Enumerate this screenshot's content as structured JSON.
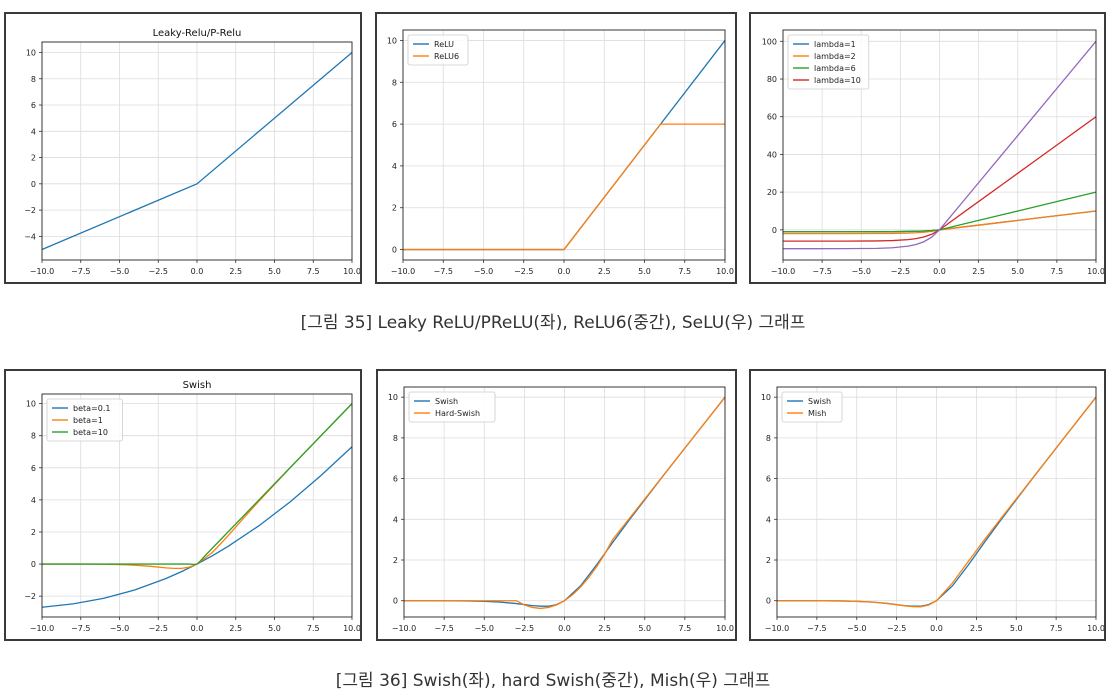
{
  "captions": {
    "row1": "[그림 35] Leaky ReLU/PReLU(좌), ReLU6(중간), SeLU(우) 그래프",
    "row2": "[그림 36] Swish(좌), hard Swish(중간), Mish(우) 그래프"
  },
  "chart_data": [
    {
      "type": "line",
      "title": "Leaky-Relu/P-Relu",
      "xlabel": "",
      "ylabel": "",
      "xlim": [
        -10.0,
        10.0
      ],
      "ylim": [
        -5.8,
        10.8
      ],
      "xticks": [
        "−10.0",
        "−7.5",
        "−5.0",
        "−2.5",
        "0.0",
        "2.5",
        "5.0",
        "7.5",
        "10.0"
      ],
      "xtick_values": [
        -10,
        -7.5,
        -5,
        -2.5,
        0,
        2.5,
        5,
        7.5,
        10
      ],
      "yticks": [
        "−4",
        "−2",
        "0",
        "2",
        "4",
        "6",
        "8",
        "10"
      ],
      "ytick_values": [
        -4,
        -2,
        0,
        2,
        4,
        6,
        8,
        10
      ],
      "grid": true,
      "legend": null,
      "series": [
        {
          "color": "#1f77b4",
          "x": [
            -10,
            0,
            10
          ],
          "y": [
            -5,
            0,
            10
          ]
        }
      ]
    },
    {
      "type": "line",
      "title": "",
      "xlabel": "",
      "ylabel": "",
      "xlim": [
        -10.0,
        10.0
      ],
      "ylim": [
        -0.5,
        10.5
      ],
      "xticks": [
        "−10.0",
        "−7.5",
        "−5.0",
        "−2.5",
        "0.0",
        "2.5",
        "5.0",
        "7.5",
        "10.0"
      ],
      "xtick_values": [
        -10,
        -7.5,
        -5,
        -2.5,
        0,
        2.5,
        5,
        7.5,
        10
      ],
      "yticks": [
        "0",
        "2",
        "4",
        "6",
        "8",
        "10"
      ],
      "ytick_values": [
        0,
        2,
        4,
        6,
        8,
        10
      ],
      "grid": true,
      "legend": "top-left",
      "series": [
        {
          "name": "ReLU",
          "color": "#1f77b4",
          "x": [
            -10,
            0,
            10
          ],
          "y": [
            0,
            0,
            10
          ]
        },
        {
          "name": "ReLU6",
          "color": "#ff7f0e",
          "x": [
            -10,
            0,
            6,
            10
          ],
          "y": [
            0,
            0,
            6,
            6
          ]
        }
      ]
    },
    {
      "type": "line",
      "title": "",
      "xlabel": "",
      "ylabel": "",
      "xlim": [
        -10.0,
        10.0
      ],
      "ylim": [
        -16,
        106
      ],
      "xticks": [
        "−10.0",
        "−7.5",
        "−5.0",
        "−2.5",
        "0.0",
        "2.5",
        "5.0",
        "7.5",
        "10.0"
      ],
      "xtick_values": [
        -10,
        -7.5,
        -5,
        -2.5,
        0,
        2.5,
        5,
        7.5,
        10
      ],
      "yticks": [
        "0",
        "20",
        "40",
        "60",
        "80",
        "100"
      ],
      "ytick_values": [
        0,
        20,
        40,
        60,
        80,
        100
      ],
      "grid": true,
      "legend": "top-left",
      "series": [
        {
          "name": "lambda=1",
          "color": "#1f77b4",
          "x": [
            -10,
            -8,
            -6,
            -4,
            -3,
            -2,
            -1.5,
            -1,
            -0.5,
            0,
            2,
            4,
            6,
            8,
            10
          ],
          "y": [
            -1,
            -1,
            -1,
            -0.98,
            -0.95,
            -0.86,
            -0.78,
            -0.63,
            -0.39,
            0,
            2,
            4,
            6,
            8,
            10
          ]
        },
        {
          "name": "lambda=2",
          "color": "#ff7f0e",
          "x": [
            -10,
            -8,
            -6,
            -4,
            -3,
            -2,
            -1.5,
            -1,
            -0.5,
            0,
            2,
            4,
            6,
            8,
            10
          ],
          "y": [
            -2,
            -2,
            -2,
            -1.96,
            -1.9,
            -1.73,
            -1.55,
            -1.26,
            -0.79,
            0,
            2,
            4,
            6,
            8,
            10
          ]
        },
        {
          "name": "lambda=6",
          "color": "#2ca02c",
          "x": [
            -10,
            -8,
            -6,
            -4,
            -3,
            -2,
            -1.5,
            -1,
            -0.5,
            0,
            2,
            4,
            6,
            8,
            10
          ],
          "y": [
            -1,
            -1,
            -1,
            -0.98,
            -0.95,
            -0.86,
            -0.78,
            -0.63,
            -0.39,
            0,
            4,
            8,
            12,
            16,
            20
          ]
        },
        {
          "name": "lambda=10",
          "color": "#d62728",
          "x": [
            -10,
            -8,
            -6,
            -4,
            -3,
            -2,
            -1.5,
            -1,
            -0.5,
            0,
            2,
            4,
            6,
            8,
            10
          ],
          "y": [
            -6,
            -6,
            -5.99,
            -5.89,
            -5.7,
            -5.19,
            -4.66,
            -3.79,
            -2.36,
            0,
            12,
            24,
            36,
            48,
            60
          ]
        },
        {
          "color": "#9467bd",
          "x": [
            -10,
            -8,
            -6,
            -4,
            -3,
            -2,
            -1.5,
            -1,
            -0.5,
            0,
            2,
            4,
            6,
            8,
            10
          ],
          "y": [
            -10,
            -10,
            -9.98,
            -9.82,
            -9.5,
            -8.65,
            -7.77,
            -6.32,
            -3.93,
            0,
            20,
            40,
            60,
            80,
            100
          ]
        }
      ]
    },
    {
      "type": "line",
      "title": "Swish",
      "xlabel": "",
      "ylabel": "",
      "xlim": [
        -10.0,
        10.0
      ],
      "ylim": [
        -3.3,
        10.6
      ],
      "xticks": [
        "−10.0",
        "−7.5",
        "−5.0",
        "−2.5",
        "0.0",
        "2.5",
        "5.0",
        "7.5",
        "10.0"
      ],
      "xtick_values": [
        -10,
        -7.5,
        -5,
        -2.5,
        0,
        2.5,
        5,
        7.5,
        10
      ],
      "yticks": [
        "−2",
        "0",
        "2",
        "4",
        "6",
        "8",
        "10"
      ],
      "ytick_values": [
        -2,
        0,
        2,
        4,
        6,
        8,
        10
      ],
      "grid": true,
      "legend": "top-left",
      "series": [
        {
          "name": "beta=0.1",
          "color": "#1f77b4",
          "x": [
            -10,
            -8,
            -6,
            -4,
            -2,
            -1,
            0,
            1,
            2,
            4,
            6,
            8,
            10
          ],
          "y": [
            -2.69,
            -2.48,
            -2.13,
            -1.61,
            -0.9,
            -0.47,
            0,
            0.52,
            1.1,
            2.39,
            3.87,
            5.52,
            7.31
          ]
        },
        {
          "name": "beta=1",
          "color": "#ff7f0e",
          "x": [
            -10,
            -8,
            -6,
            -5,
            -4,
            -3,
            -2,
            -1.5,
            -1,
            -0.5,
            0,
            1,
            2,
            3,
            4,
            6,
            8,
            10
          ],
          "y": [
            0,
            0,
            -0.01,
            -0.03,
            -0.07,
            -0.14,
            -0.24,
            -0.27,
            -0.27,
            -0.19,
            0,
            0.73,
            1.76,
            2.86,
            3.93,
            5.99,
            8,
            10
          ]
        },
        {
          "name": "beta=10",
          "color": "#2ca02c",
          "x": [
            -10,
            -5,
            -1,
            -0.5,
            -0.2,
            0,
            0.2,
            0.5,
            1,
            5,
            10
          ],
          "y": [
            0,
            0,
            0,
            0,
            -0.02,
            0,
            0.18,
            0.5,
            1,
            5,
            10
          ]
        }
      ]
    },
    {
      "type": "line",
      "title": "",
      "xlabel": "",
      "ylabel": "",
      "xlim": [
        -10.0,
        10.0
      ],
      "ylim": [
        -0.8,
        10.5
      ],
      "xticks": [
        "−10.0",
        "−7.5",
        "−5.0",
        "−2.5",
        "0.0",
        "2.5",
        "5.0",
        "7.5",
        "10.0"
      ],
      "xtick_values": [
        -10,
        -7.5,
        -5,
        -2.5,
        0,
        2.5,
        5,
        7.5,
        10
      ],
      "yticks": [
        "0",
        "2",
        "4",
        "6",
        "8",
        "10"
      ],
      "ytick_values": [
        0,
        2,
        4,
        6,
        8,
        10
      ],
      "grid": true,
      "legend": "top-left",
      "series": [
        {
          "name": "Swish",
          "color": "#1f77b4",
          "x": [
            -10,
            -8,
            -6,
            -5,
            -4,
            -3,
            -2,
            -1.5,
            -1,
            -0.5,
            0,
            1,
            2,
            3,
            4,
            6,
            8,
            10
          ],
          "y": [
            0,
            0,
            -0.01,
            -0.03,
            -0.07,
            -0.14,
            -0.24,
            -0.27,
            -0.27,
            -0.19,
            0,
            0.73,
            1.76,
            2.86,
            3.93,
            5.99,
            8,
            10
          ]
        },
        {
          "name": "Hard-Swish",
          "color": "#ff7f0e",
          "x": [
            -10,
            -3,
            -2.5,
            -2,
            -1.5,
            -1,
            -0.5,
            0,
            0.5,
            1,
            1.5,
            2,
            2.5,
            3,
            4,
            6,
            8,
            10
          ],
          "y": [
            0,
            0,
            -0.21,
            -0.33,
            -0.38,
            -0.33,
            -0.21,
            0,
            0.29,
            0.67,
            1.13,
            1.67,
            2.29,
            3,
            4,
            6,
            8,
            10
          ]
        }
      ]
    },
    {
      "type": "line",
      "title": "",
      "xlabel": "",
      "ylabel": "",
      "xlim": [
        -10.0,
        10.0
      ],
      "ylim": [
        -0.8,
        10.5
      ],
      "xticks": [
        "−10.0",
        "−7.5",
        "−5.0",
        "−2.5",
        "0.0",
        "2.5",
        "5.0",
        "7.5",
        "10.0"
      ],
      "xtick_values": [
        -10,
        -7.5,
        -5,
        -2.5,
        0,
        2.5,
        5,
        7.5,
        10
      ],
      "yticks": [
        "0",
        "2",
        "4",
        "6",
        "8",
        "10"
      ],
      "ytick_values": [
        0,
        2,
        4,
        6,
        8,
        10
      ],
      "grid": true,
      "legend": "top-left",
      "series": [
        {
          "name": "Swish",
          "color": "#1f77b4",
          "x": [
            -10,
            -8,
            -6,
            -5,
            -4,
            -3,
            -2,
            -1.5,
            -1,
            -0.5,
            0,
            1,
            2,
            3,
            4,
            6,
            8,
            10
          ],
          "y": [
            0,
            0,
            -0.01,
            -0.03,
            -0.07,
            -0.14,
            -0.24,
            -0.27,
            -0.27,
            -0.19,
            0,
            0.73,
            1.76,
            2.86,
            3.93,
            5.99,
            8,
            10
          ]
        },
        {
          "name": "Mish",
          "color": "#ff7f0e",
          "x": [
            -10,
            -8,
            -6,
            -5,
            -4,
            -3,
            -2,
            -1.5,
            -1,
            -0.5,
            0,
            1,
            2,
            3,
            4,
            6,
            8,
            10
          ],
          "y": [
            0,
            0,
            -0.01,
            -0.03,
            -0.07,
            -0.15,
            -0.25,
            -0.29,
            -0.3,
            -0.22,
            0,
            0.87,
            1.94,
            2.99,
            4,
            6,
            8,
            10
          ]
        }
      ]
    }
  ]
}
